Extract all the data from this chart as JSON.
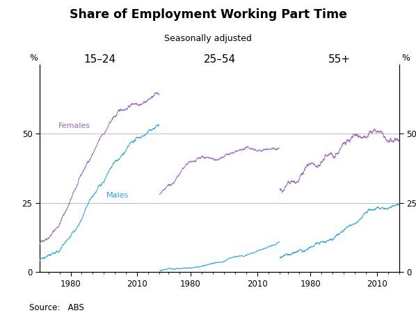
{
  "title": "Share of Employment Working Part Time",
  "subtitle": "Seasonally adjusted",
  "source": "Source:   ABS",
  "panel_labels": [
    "15–24",
    "25–54",
    "55+"
  ],
  "ylabel_left": "%",
  "ylabel_right": "%",
  "yticks": [
    0,
    25,
    50
  ],
  "ytick_labels": [
    "0",
    "25",
    "50"
  ],
  "ylim": [
    0,
    75
  ],
  "female_color": "#9966cc",
  "male_color": "#29a8e0",
  "start_year": 1966,
  "end_year": 2020,
  "bg_color": "#ffffff",
  "grid_color": "#b0b0b0",
  "spine_color": "#000000"
}
